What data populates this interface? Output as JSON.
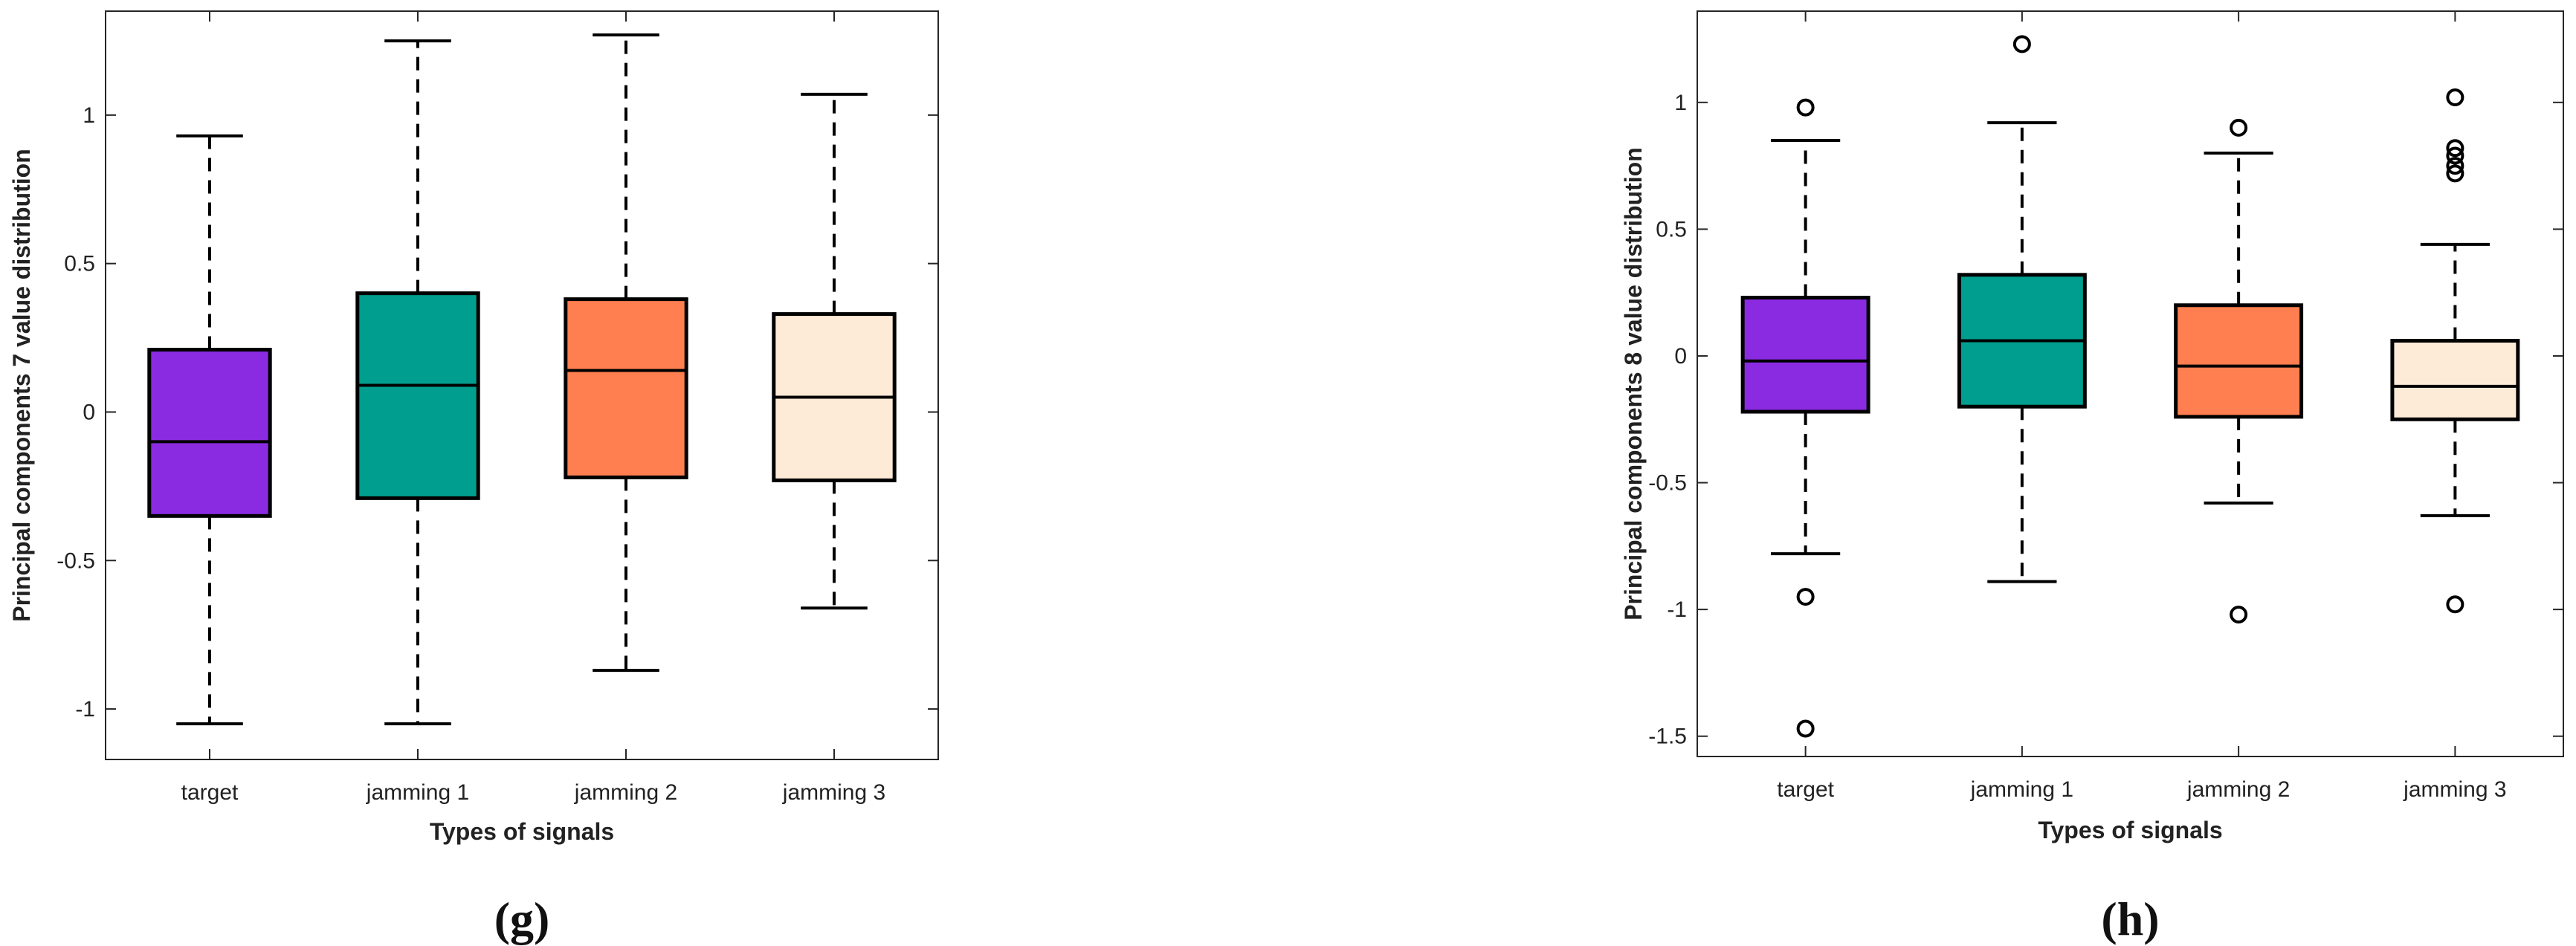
{
  "chart_data": [
    {
      "type": "box",
      "panel_label": "(g)",
      "categories": [
        "target",
        "jamming 1",
        "jamming 2",
        "jamming 3"
      ],
      "xlabel": "Types of signals",
      "ylabel": "Principal components 7 value distribution",
      "ylim": [
        -1.17,
        1.35
      ],
      "yticks": [
        -1,
        -0.5,
        0,
        0.5,
        1
      ],
      "ytick_labels": [
        "-1",
        "-0.5",
        "0",
        "0.5",
        "1"
      ],
      "grid": false,
      "boxes": [
        {
          "category": "target",
          "color": "#8A2BE2",
          "whisker_low": -1.05,
          "q1": -0.35,
          "median": -0.1,
          "q3": 0.21,
          "whisker_high": 0.93,
          "outliers": []
        },
        {
          "category": "jamming 1",
          "color": "#009E8E",
          "whisker_low": -1.05,
          "q1": -0.29,
          "median": 0.09,
          "q3": 0.4,
          "whisker_high": 1.25,
          "outliers": []
        },
        {
          "category": "jamming 2",
          "color": "#FF7F50",
          "whisker_low": -0.87,
          "q1": -0.22,
          "median": 0.14,
          "q3": 0.38,
          "whisker_high": 1.27,
          "outliers": []
        },
        {
          "category": "jamming 3",
          "color": "#FDEBD8",
          "whisker_low": -0.66,
          "q1": -0.23,
          "median": 0.05,
          "q3": 0.33,
          "whisker_high": 1.07,
          "outliers": []
        }
      ]
    },
    {
      "type": "box",
      "panel_label": "(h)",
      "categories": [
        "target",
        "jamming 1",
        "jamming 2",
        "jamming 3"
      ],
      "xlabel": "Types of signals",
      "ylabel": "Principal components 8 value distribution",
      "ylim": [
        -1.58,
        1.36
      ],
      "yticks": [
        -1.5,
        -1,
        -0.5,
        0,
        0.5,
        1
      ],
      "ytick_labels": [
        "-1.5",
        "-1",
        "-0.5",
        "0",
        "0.5",
        "1"
      ],
      "grid": false,
      "boxes": [
        {
          "category": "target",
          "color": "#8A2BE2",
          "whisker_low": -0.78,
          "q1": -0.22,
          "median": -0.02,
          "q3": 0.23,
          "whisker_high": 0.85,
          "outliers": [
            0.98,
            -0.95,
            -1.47
          ]
        },
        {
          "category": "jamming 1",
          "color": "#009E8E",
          "whisker_low": -0.89,
          "q1": -0.2,
          "median": 0.06,
          "q3": 0.32,
          "whisker_high": 0.92,
          "outliers": [
            1.23
          ]
        },
        {
          "category": "jamming 2",
          "color": "#FF7F50",
          "whisker_low": -0.58,
          "q1": -0.24,
          "median": -0.04,
          "q3": 0.2,
          "whisker_high": 0.8,
          "outliers": [
            0.9,
            -1.02
          ]
        },
        {
          "category": "jamming 3",
          "color": "#FDEBD8",
          "whisker_low": -0.63,
          "q1": -0.25,
          "median": -0.12,
          "q3": 0.06,
          "whisker_high": 0.44,
          "outliers": [
            1.02,
            0.82,
            0.79,
            0.75,
            0.72,
            -0.98
          ]
        }
      ]
    }
  ]
}
